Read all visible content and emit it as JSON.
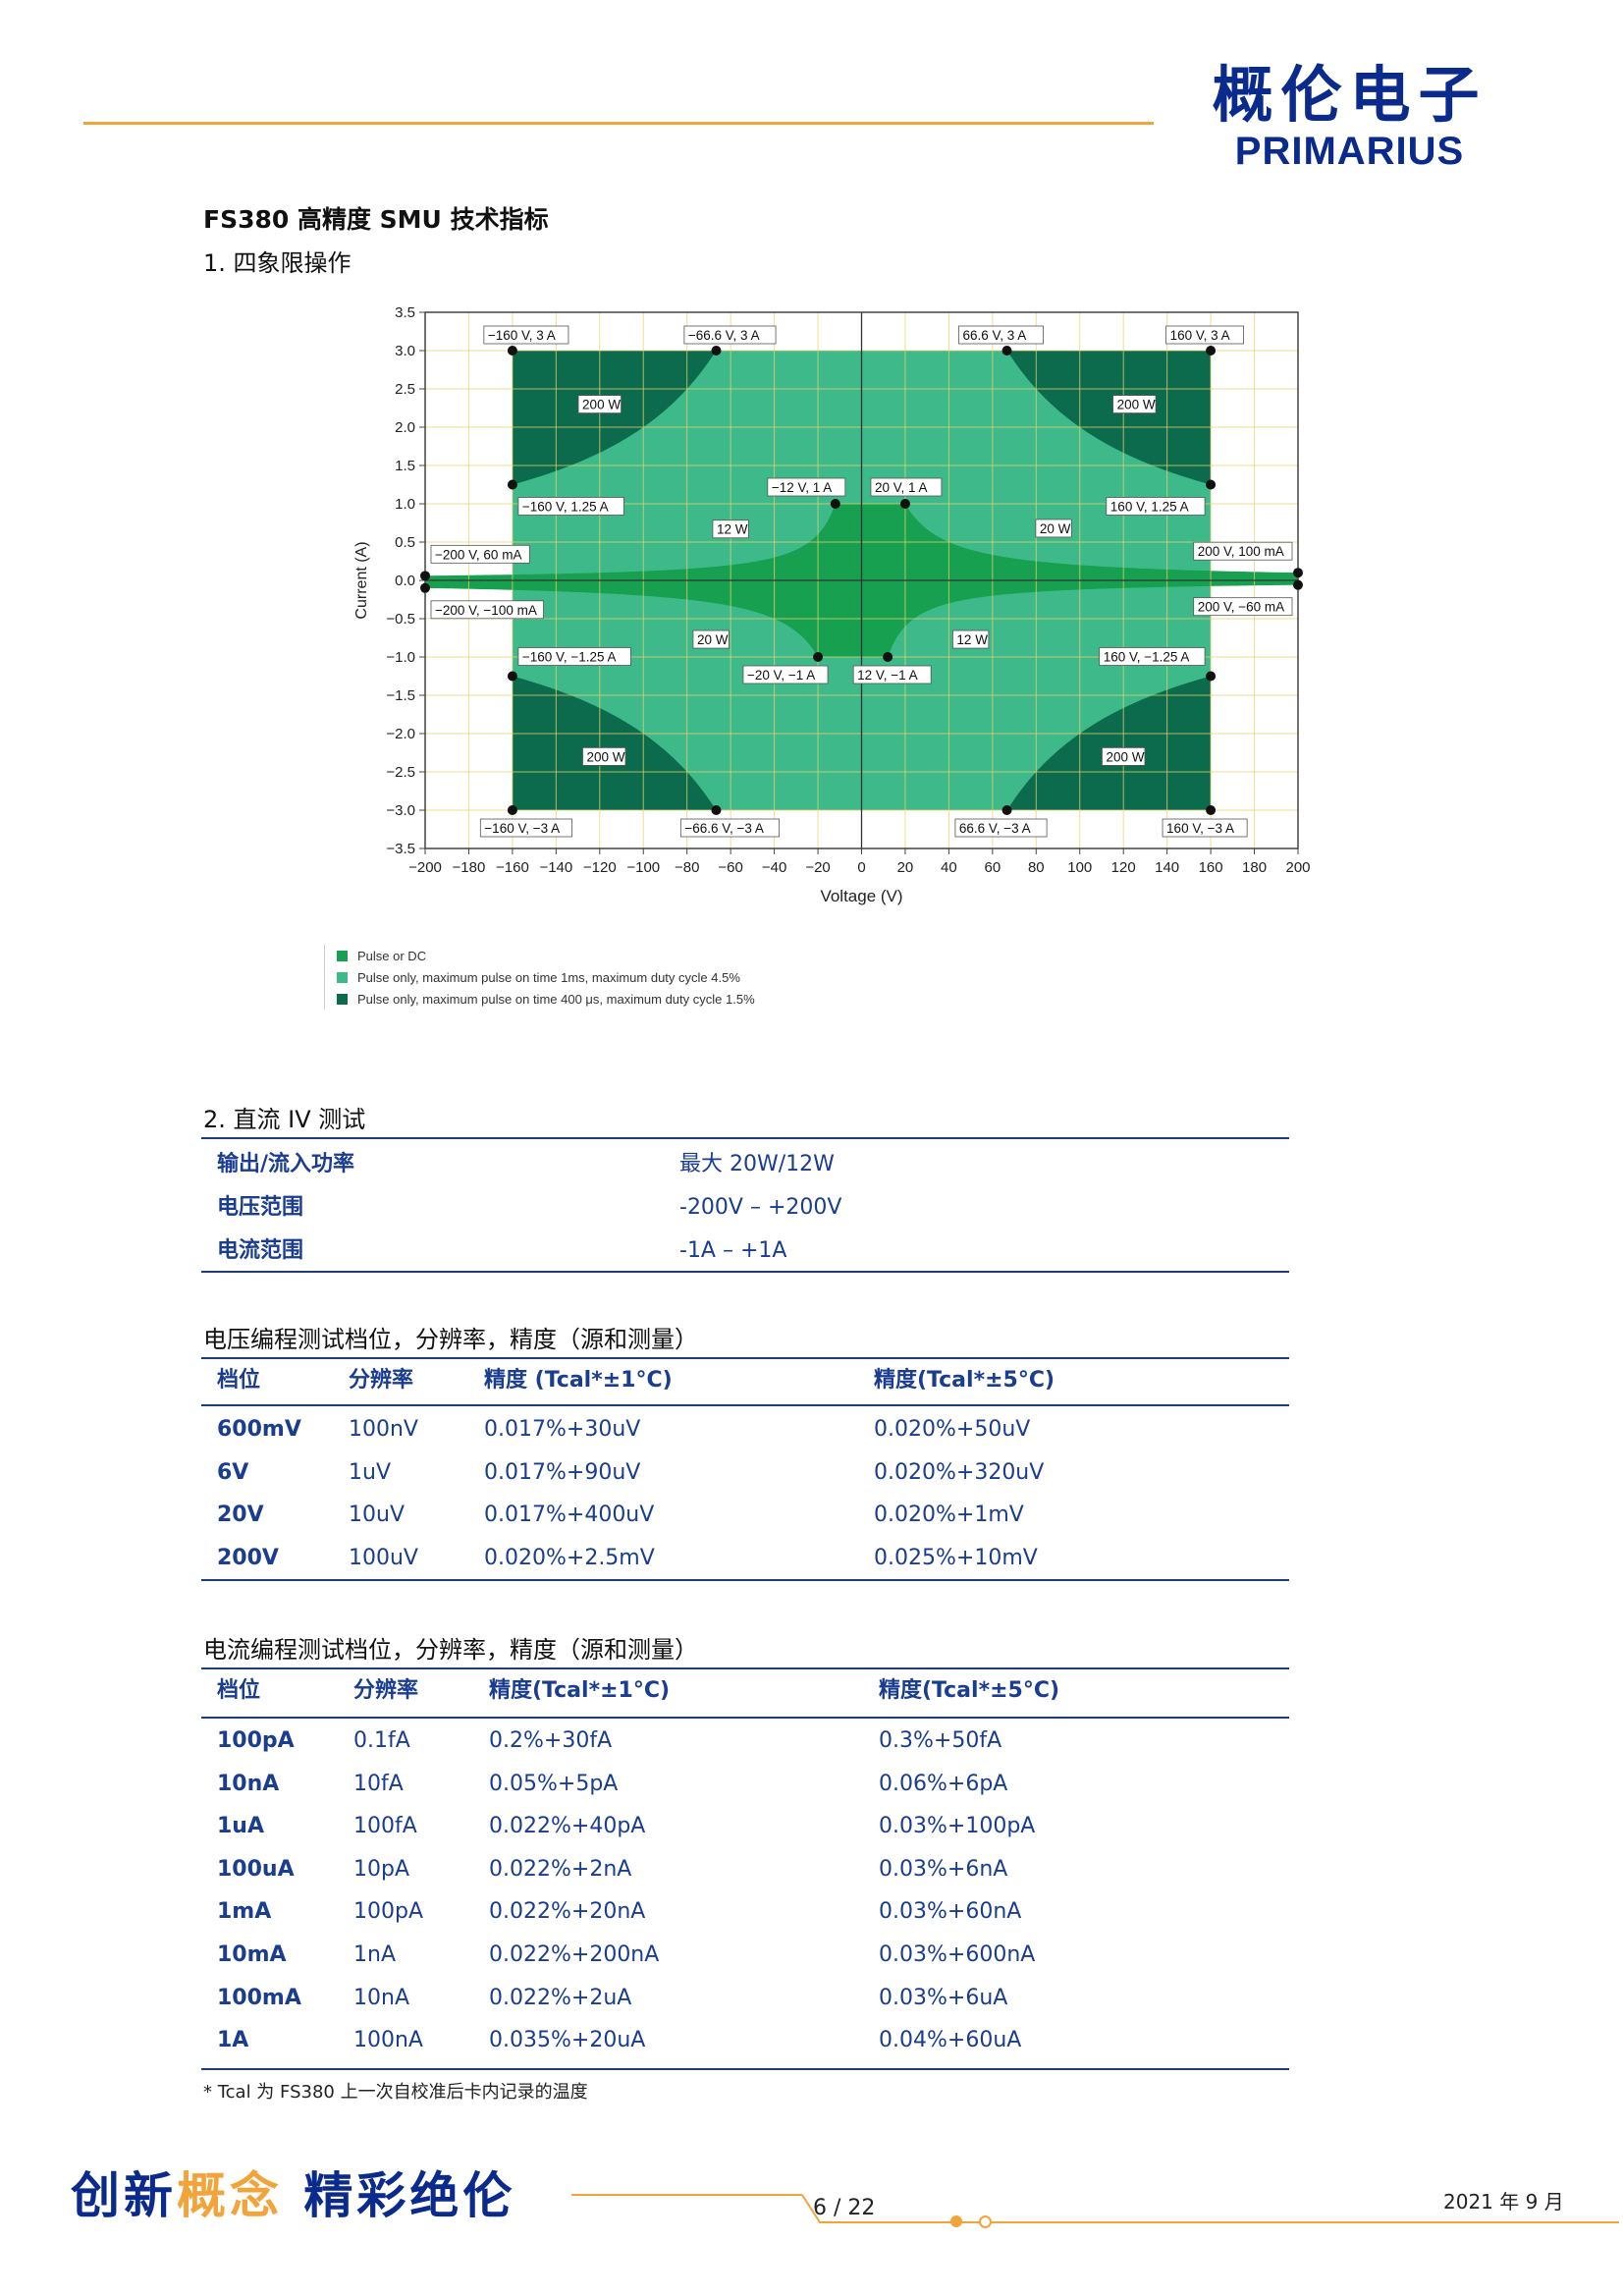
{
  "logo": {
    "cn": "概伦电子",
    "en": "PRIMARIUS"
  },
  "doc_title": "FS380  高精度 SMU  技术指标",
  "section1": "1. 四象限操作",
  "chart_data": {
    "type": "area",
    "xlabel": "Voltage (V)",
    "ylabel": "Current (A)",
    "xlim": [
      -200,
      200
    ],
    "ylim": [
      -3.5,
      3.5
    ],
    "xticks": [
      "−200",
      "−180",
      "−160",
      "−140",
      "−120",
      "−100",
      "−80",
      "−60",
      "−40",
      "−20",
      "0",
      "20",
      "40",
      "60",
      "80",
      "100",
      "120",
      "140",
      "160",
      "180",
      "200"
    ],
    "yticks": [
      "3.5",
      "3.0",
      "2.5",
      "2.0",
      "1.5",
      "1.0",
      "0.5",
      "0.0",
      "−0.5",
      "−1.0",
      "−1.5",
      "−2.0",
      "−2.5",
      "−3.0",
      "−3.5"
    ],
    "grid": true,
    "points": [
      {
        "x": -160,
        "y": 3,
        "label": "−160 V, 3 A"
      },
      {
        "x": -66.6,
        "y": 3,
        "label": "−66.6 V, 3 A"
      },
      {
        "x": 66.6,
        "y": 3,
        "label": "66.6 V, 3 A"
      },
      {
        "x": 160,
        "y": 3,
        "label": "160 V, 3 A"
      },
      {
        "x": -160,
        "y": 1.25,
        "label": "−160 V, 1.25 A"
      },
      {
        "x": 160,
        "y": 1.25,
        "label": "160 V, 1.25 A"
      },
      {
        "x": -12,
        "y": 1,
        "label": "−12 V, 1 A"
      },
      {
        "x": 20,
        "y": 1,
        "label": "20 V, 1 A"
      },
      {
        "x": -200,
        "y": 0.06,
        "label": "−200 V, 60 mA"
      },
      {
        "x": 200,
        "y": 0.1,
        "label": "200 V, 100 mA"
      },
      {
        "x": -200,
        "y": -0.1,
        "label": "−200 V, −100 mA"
      },
      {
        "x": 200,
        "y": -0.06,
        "label": "200 V, −60 mA"
      },
      {
        "x": -160,
        "y": -1.25,
        "label": "−160 V, −1.25 A"
      },
      {
        "x": 160,
        "y": -1.25,
        "label": "160 V, −1.25 A"
      },
      {
        "x": -20,
        "y": -1,
        "label": "−20 V, −1 A"
      },
      {
        "x": 12,
        "y": -1,
        "label": "12 V, −1 A"
      },
      {
        "x": -160,
        "y": -3,
        "label": "−160 V, −3 A"
      },
      {
        "x": -66.6,
        "y": -3,
        "label": "−66.6 V, −3 A"
      },
      {
        "x": 66.6,
        "y": -3,
        "label": "66.6 V, −3 A"
      },
      {
        "x": 160,
        "y": -3,
        "label": "160 V, −3 A"
      }
    ],
    "power_labels": [
      {
        "x": -120,
        "y": 2.3,
        "label": "200 W"
      },
      {
        "x": 125,
        "y": 2.3,
        "label": "200 W"
      },
      {
        "x": -60,
        "y": 0.67,
        "label": "12 W"
      },
      {
        "x": 88,
        "y": 0.68,
        "label": "20 W"
      },
      {
        "x": -69,
        "y": -0.77,
        "label": "20 W"
      },
      {
        "x": 50,
        "y": -0.77,
        "label": "12 W"
      },
      {
        "x": -118,
        "y": -2.3,
        "label": "200 W"
      },
      {
        "x": 120,
        "y": -2.3,
        "label": "200 W"
      }
    ],
    "legend": [
      {
        "label": "Pulse or DC",
        "color": "#16a04f"
      },
      {
        "label": "Pulse only, maximum pulse on time 1ms, maximum duty cycle 4.5%",
        "color": "#3db98a"
      },
      {
        "label": "Pulse only, maximum pulse on time 400 μs, maximum duty cycle 1.5%",
        "color": "#0b6b4c"
      }
    ],
    "colors": {
      "dc": "#16a04f",
      "pulse1": "#3db98a",
      "pulse2": "#0b6b4c"
    }
  },
  "section2": "2. 直流 IV 测试",
  "dc_table": [
    {
      "label": "输出/流入功率",
      "value": "最大 20W/12W"
    },
    {
      "label": "电压范围",
      "value": "-200V – +200V"
    },
    {
      "label": "电流范围",
      "value": "-1A – +1A"
    }
  ],
  "voltage_caption": "电压编程测试档位，分辨率，精度（源和测量）",
  "voltage_headers": [
    "档位",
    "分辨率",
    "精度 (Tcal*±1°C)",
    "精度(Tcal*±5°C)"
  ],
  "voltage_rows": [
    [
      "600mV",
      "100nV",
      "0.017%+30uV",
      "0.020%+50uV"
    ],
    [
      "6V",
      "1uV",
      "0.017%+90uV",
      "0.020%+320uV"
    ],
    [
      "20V",
      "10uV",
      "0.017%+400uV",
      "0.020%+1mV"
    ],
    [
      "200V",
      "100uV",
      "0.020%+2.5mV",
      "0.025%+10mV"
    ]
  ],
  "current_caption": "电流编程测试档位，分辨率，精度（源和测量）",
  "current_headers": [
    "档位",
    "分辨率",
    "精度(Tcal*±1°C)",
    "精度(Tcal*±5°C)"
  ],
  "current_rows": [
    [
      "100pA",
      "0.1fA",
      "0.2%+30fA",
      "0.3%+50fA"
    ],
    [
      "10nA",
      "10fA",
      "0.05%+5pA",
      "0.06%+6pA"
    ],
    [
      "1uA",
      "100fA",
      "0.022%+40pA",
      "0.03%+100pA"
    ],
    [
      "100uA",
      "10pA",
      "0.022%+2nA",
      "0.03%+6nA"
    ],
    [
      "1mA",
      "100pA",
      "0.022%+20nA",
      "0.03%+60nA"
    ],
    [
      "10mA",
      "1nA",
      "0.022%+200nA",
      "0.03%+600nA"
    ],
    [
      "100mA",
      "10nA",
      "0.022%+2uA",
      "0.03%+6uA"
    ],
    [
      "1A",
      "100nA",
      "0.035%+20uA",
      "0.04%+60uA"
    ]
  ],
  "footnote": "*    Tcal 为 FS380 上一次自校准后卡内记录的温度",
  "footer": {
    "slogan_a": "创新",
    "slogan_b": "概念",
    "slogan_c": "精彩绝伦",
    "page": "6  /  22",
    "date": "2021 年 9 月"
  }
}
